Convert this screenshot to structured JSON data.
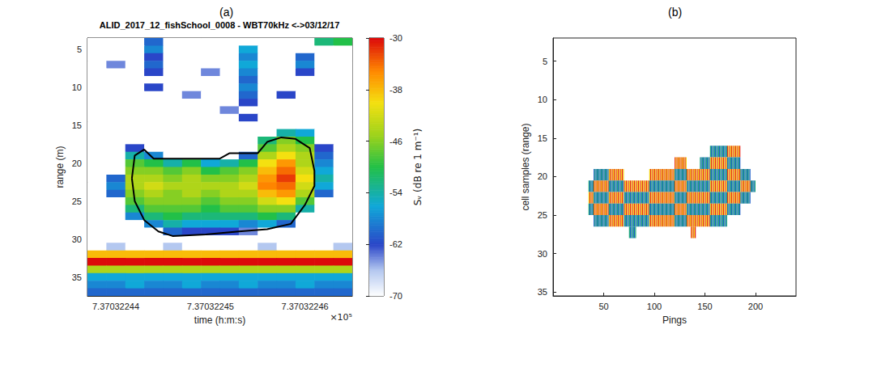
{
  "chart_data": [
    {
      "type": "echogram",
      "panel_label": "(a)",
      "title": "ALID_2017_12_fishSchool_0008 - WBT70kHz <->03/12/17",
      "x_label": "time (h:m:s)",
      "x_exponent": "×10⁵",
      "y_label": "range (m)",
      "grid": false,
      "xlim": [
        7.370322437,
        7.370322465
      ],
      "xticks": [
        7.37032244,
        7.37032245,
        7.37032246
      ],
      "ylim": [
        3.5,
        37.5
      ],
      "yticks": [
        5,
        10,
        15,
        20,
        25,
        30,
        35
      ],
      "sv_x": [
        7.370322438,
        7.37032244,
        7.370322442,
        7.370322444,
        7.370322446,
        7.370322448,
        7.37032245,
        7.370322452,
        7.370322454,
        7.370322456,
        7.370322458,
        7.37032246,
        7.370322462,
        7.370322464
      ],
      "sv_y": [
        4,
        5,
        6,
        7,
        8,
        9,
        10,
        11,
        12,
        13,
        14,
        15,
        16,
        17,
        18,
        19,
        20,
        21,
        22,
        23,
        24,
        25,
        26,
        27,
        28,
        29,
        30,
        31,
        32,
        33,
        34,
        35,
        36,
        37
      ],
      "sv": [
        [
          -70,
          -70,
          -70,
          -60,
          -70,
          -70,
          -70,
          -70,
          -70,
          -70,
          -70,
          -70,
          -52,
          -50
        ],
        [
          -70,
          -70,
          -70,
          -58,
          -70,
          -70,
          -70,
          -70,
          -56,
          -70,
          -70,
          -70,
          -70,
          -70
        ],
        [
          -70,
          -70,
          -70,
          -62,
          -70,
          -70,
          -70,
          -70,
          -58,
          -70,
          -70,
          -60,
          -70,
          -70
        ],
        [
          -70,
          -64,
          -70,
          -60,
          -70,
          -70,
          -70,
          -70,
          -56,
          -70,
          -70,
          -58,
          -70,
          -70
        ],
        [
          -70,
          -70,
          -70,
          -62,
          -70,
          -70,
          -64,
          -70,
          -58,
          -70,
          -70,
          -62,
          -70,
          -70
        ],
        [
          -70,
          -70,
          -70,
          -70,
          -70,
          -70,
          -70,
          -70,
          -60,
          -70,
          -70,
          -70,
          -70,
          -70
        ],
        [
          -70,
          -70,
          -70,
          -62,
          -70,
          -70,
          -70,
          -70,
          -58,
          -70,
          -70,
          -70,
          -70,
          -70
        ],
        [
          -70,
          -70,
          -70,
          -70,
          -70,
          -64,
          -70,
          -70,
          -60,
          -70,
          -62,
          -70,
          -70,
          -70
        ],
        [
          -70,
          -70,
          -70,
          -70,
          -70,
          -70,
          -70,
          -70,
          -62,
          -70,
          -70,
          -70,
          -70,
          -70
        ],
        [
          -70,
          -70,
          -70,
          -70,
          -70,
          -70,
          -70,
          -64,
          -70,
          -70,
          -70,
          -70,
          -70,
          -70
        ],
        [
          -70,
          -70,
          -70,
          -70,
          -70,
          -70,
          -70,
          -70,
          -62,
          -70,
          -70,
          -70,
          -70,
          -70
        ],
        [
          -70,
          -70,
          -70,
          -70,
          -70,
          -70,
          -70,
          -70,
          -70,
          -70,
          -70,
          -70,
          -70,
          -70
        ],
        [
          -70,
          -70,
          -70,
          -70,
          -70,
          -70,
          -70,
          -70,
          -70,
          -70,
          -54,
          -56,
          -70,
          -70
        ],
        [
          -70,
          -70,
          -70,
          -70,
          -70,
          -70,
          -70,
          -70,
          -70,
          -52,
          -46,
          -50,
          -70,
          -70
        ],
        [
          -70,
          -70,
          -62,
          -70,
          -70,
          -70,
          -70,
          -70,
          -70,
          -48,
          -44,
          -46,
          -62,
          -70
        ],
        [
          -70,
          -70,
          -54,
          -58,
          -70,
          -70,
          -70,
          -70,
          -60,
          -44,
          -40,
          -44,
          -60,
          -70
        ],
        [
          -70,
          -70,
          -48,
          -50,
          -54,
          -50,
          -56,
          -54,
          -50,
          -40,
          -36,
          -44,
          -58,
          -70
        ],
        [
          -70,
          -70,
          -46,
          -46,
          -48,
          -46,
          -50,
          -48,
          -46,
          -38,
          -34,
          -42,
          -56,
          -70
        ],
        [
          -70,
          -60,
          -44,
          -44,
          -46,
          -44,
          -46,
          -46,
          -44,
          -36,
          -32,
          -40,
          -54,
          -70
        ],
        [
          -70,
          -58,
          -44,
          -42,
          -44,
          -44,
          -44,
          -44,
          -42,
          -35,
          -34,
          -42,
          -56,
          -70
        ],
        [
          -70,
          -60,
          -46,
          -44,
          -46,
          -44,
          -46,
          -44,
          -44,
          -38,
          -36,
          -44,
          -60,
          -70
        ],
        [
          -70,
          -70,
          -48,
          -46,
          -46,
          -46,
          -48,
          -46,
          -46,
          -42,
          -40,
          -48,
          -70,
          -70
        ],
        [
          -70,
          -70,
          -52,
          -48,
          -48,
          -48,
          -50,
          -48,
          -48,
          -46,
          -46,
          -54,
          -70,
          -70
        ],
        [
          -70,
          -70,
          -58,
          -52,
          -50,
          -52,
          -52,
          -52,
          -52,
          -50,
          -52,
          -70,
          -70,
          -70
        ],
        [
          -70,
          -70,
          -70,
          -58,
          -54,
          -56,
          -56,
          -56,
          -58,
          -56,
          -60,
          -70,
          -70,
          -70
        ],
        [
          -70,
          -70,
          -70,
          -70,
          -60,
          -62,
          -62,
          -62,
          -64,
          -70,
          -70,
          -70,
          -70,
          -70
        ],
        [
          -70,
          -70,
          -70,
          -70,
          -70,
          -70,
          -70,
          -70,
          -70,
          -70,
          -70,
          -70,
          -70,
          -70
        ],
        [
          -70,
          -66,
          -70,
          -70,
          -66,
          -70,
          -70,
          -70,
          -70,
          -66,
          -70,
          -70,
          -70,
          -66
        ],
        [
          -38,
          -38,
          -38,
          -38,
          -38,
          -38,
          -38,
          -38,
          -38,
          -38,
          -38,
          -38,
          -38,
          -38
        ],
        [
          -30,
          -30,
          -30,
          -30,
          -30,
          -30,
          -30,
          -30,
          -30,
          -30,
          -30,
          -30,
          -30,
          -30
        ],
        [
          -44,
          -44,
          -44,
          -44,
          -44,
          -44,
          -44,
          -44,
          -44,
          -44,
          -44,
          -44,
          -44,
          -44
        ],
        [
          -56,
          -56,
          -56,
          -56,
          -56,
          -56,
          -56,
          -56,
          -56,
          -56,
          -56,
          -56,
          -56,
          -56
        ],
        [
          -58,
          -58,
          -56,
          -58,
          -58,
          -56,
          -58,
          -58,
          -56,
          -58,
          -58,
          -56,
          -58,
          -58
        ],
        [
          -60,
          -60,
          -60,
          -60,
          -60,
          -60,
          -60,
          -60,
          -60,
          -60,
          -60,
          -60,
          -60,
          -60
        ]
      ],
      "outline": [
        [
          7.3703224417,
          22
        ],
        [
          7.370322442,
          19
        ],
        [
          7.370322443,
          18.2
        ],
        [
          7.370322444,
          19.4
        ],
        [
          7.370322451,
          19.4
        ],
        [
          7.370322452,
          18.7
        ],
        [
          7.370322455,
          18.7
        ],
        [
          7.370322456,
          17.2
        ],
        [
          7.3703224575,
          16.6
        ],
        [
          7.370322459,
          16.8
        ],
        [
          7.3703224605,
          18
        ],
        [
          7.370322461,
          21
        ],
        [
          7.370322461,
          23
        ],
        [
          7.37032246,
          25.5
        ],
        [
          7.3703224585,
          28
        ],
        [
          7.370322456,
          28.7
        ],
        [
          7.370322453,
          29
        ],
        [
          7.3703224495,
          29.4
        ],
        [
          7.370322446,
          29.6
        ],
        [
          7.3703224445,
          29
        ],
        [
          7.370322443,
          27.5
        ],
        [
          7.370322442,
          25
        ],
        [
          7.3703224417,
          22
        ]
      ],
      "colorbar": {
        "label": "Sᵥ (dB re 1 m⁻¹)",
        "lim": [
          -70,
          -30
        ],
        "ticks": [
          -30,
          -38,
          -46,
          -54,
          -62,
          -70
        ]
      }
    },
    {
      "type": "cell_map",
      "panel_label": "(b)",
      "x_label": "Pings",
      "y_label": "cell samples (range)",
      "grid": false,
      "xlim": [
        0,
        240
      ],
      "xticks": [
        50,
        100,
        150,
        200
      ],
      "ylim": [
        2,
        35.5
      ],
      "yticks": [
        5,
        10,
        15,
        20,
        25,
        30,
        35
      ],
      "row_edges": [
        16,
        17.5,
        19,
        20.5,
        22,
        23.5,
        25,
        26.5,
        28,
        29.5
      ],
      "segments": [
        [
          35,
          40,
          20.5,
          25
        ],
        [
          40,
          55,
          19,
          26.5
        ],
        [
          55,
          70,
          19,
          26.5
        ],
        [
          70,
          85,
          20.5,
          26.5
        ],
        [
          75,
          82,
          26.5,
          28
        ],
        [
          85,
          95,
          20.5,
          26.5
        ],
        [
          95,
          120,
          19,
          26.5
        ],
        [
          120,
          132,
          17.5,
          26.5
        ],
        [
          132,
          145,
          19,
          26.5
        ],
        [
          136,
          141,
          26.5,
          28
        ],
        [
          145,
          155,
          17.5,
          26.5
        ],
        [
          155,
          172,
          16,
          26.5
        ],
        [
          172,
          185,
          16,
          25
        ],
        [
          185,
          195,
          19,
          23.5
        ],
        [
          195,
          200,
          20.5,
          22
        ]
      ],
      "colors": [
        "#e8281e",
        "#f2d21b",
        "#1e5fc8",
        "#1fa87a"
      ]
    }
  ]
}
